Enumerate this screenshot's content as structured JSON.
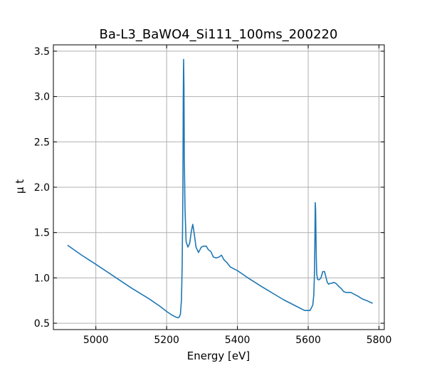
{
  "colors": {
    "line": "#1f77b4",
    "grid": "#b0b0b0",
    "axes": "#000000",
    "background": "#ffffff"
  },
  "chart_data": {
    "type": "line",
    "title": "Ba-L3_BaWO4_Si111_100ms_200220",
    "xlabel": "Energy [eV]",
    "ylabel": "μ t",
    "xlim": [
      4880,
      5815
    ],
    "ylim": [
      0.43,
      3.57
    ],
    "grid": true,
    "legend": "none",
    "xticks": [
      5000,
      5200,
      5400,
      5600,
      5800
    ],
    "xtick_labels": [
      "5000",
      "5200",
      "5400",
      "5600",
      "5800"
    ],
    "yticks": [
      0.5,
      1.0,
      1.5,
      2.0,
      2.5,
      3.0,
      3.5
    ],
    "ytick_labels": [
      "0.5",
      "1.0",
      "1.5",
      "2.0",
      "2.5",
      "3.0",
      "3.5"
    ],
    "series": [
      {
        "x": [
          4920,
          4960,
          5000,
          5050,
          5100,
          5150,
          5180,
          5200,
          5215,
          5225,
          5232,
          5236,
          5239,
          5242,
          5244,
          5246,
          5247,
          5248,
          5249,
          5250,
          5252,
          5255,
          5260,
          5265,
          5270,
          5274,
          5278,
          5283,
          5290,
          5298,
          5305,
          5312,
          5318,
          5325,
          5332,
          5340,
          5348,
          5355,
          5362,
          5370,
          5380,
          5400,
          5430,
          5470,
          5500,
          5530,
          5560,
          5590,
          5605,
          5613,
          5616,
          5618,
          5619,
          5620,
          5621,
          5622,
          5623,
          5624,
          5626,
          5628,
          5631,
          5636,
          5641,
          5646,
          5650,
          5654,
          5658,
          5662,
          5666,
          5672,
          5678,
          5683,
          5688,
          5694,
          5700,
          5706,
          5712,
          5720,
          5730,
          5740,
          5752,
          5765,
          5782
        ],
        "y": [
          1.36,
          1.25,
          1.15,
          1.02,
          0.89,
          0.77,
          0.69,
          0.63,
          0.59,
          0.57,
          0.56,
          0.57,
          0.6,
          0.76,
          1.15,
          1.95,
          3.0,
          3.41,
          3.1,
          2.3,
          1.75,
          1.4,
          1.34,
          1.38,
          1.52,
          1.59,
          1.49,
          1.34,
          1.28,
          1.34,
          1.35,
          1.35,
          1.31,
          1.29,
          1.23,
          1.22,
          1.23,
          1.25,
          1.2,
          1.17,
          1.12,
          1.08,
          1.0,
          0.9,
          0.83,
          0.76,
          0.7,
          0.64,
          0.64,
          0.7,
          0.82,
          1.1,
          1.45,
          1.83,
          1.75,
          1.45,
          1.2,
          1.05,
          0.99,
          0.98,
          0.98,
          1.0,
          1.07,
          1.07,
          1.01,
          0.95,
          0.93,
          0.94,
          0.94,
          0.95,
          0.94,
          0.92,
          0.9,
          0.88,
          0.85,
          0.84,
          0.84,
          0.84,
          0.82,
          0.8,
          0.77,
          0.75,
          0.72
        ]
      }
    ]
  }
}
